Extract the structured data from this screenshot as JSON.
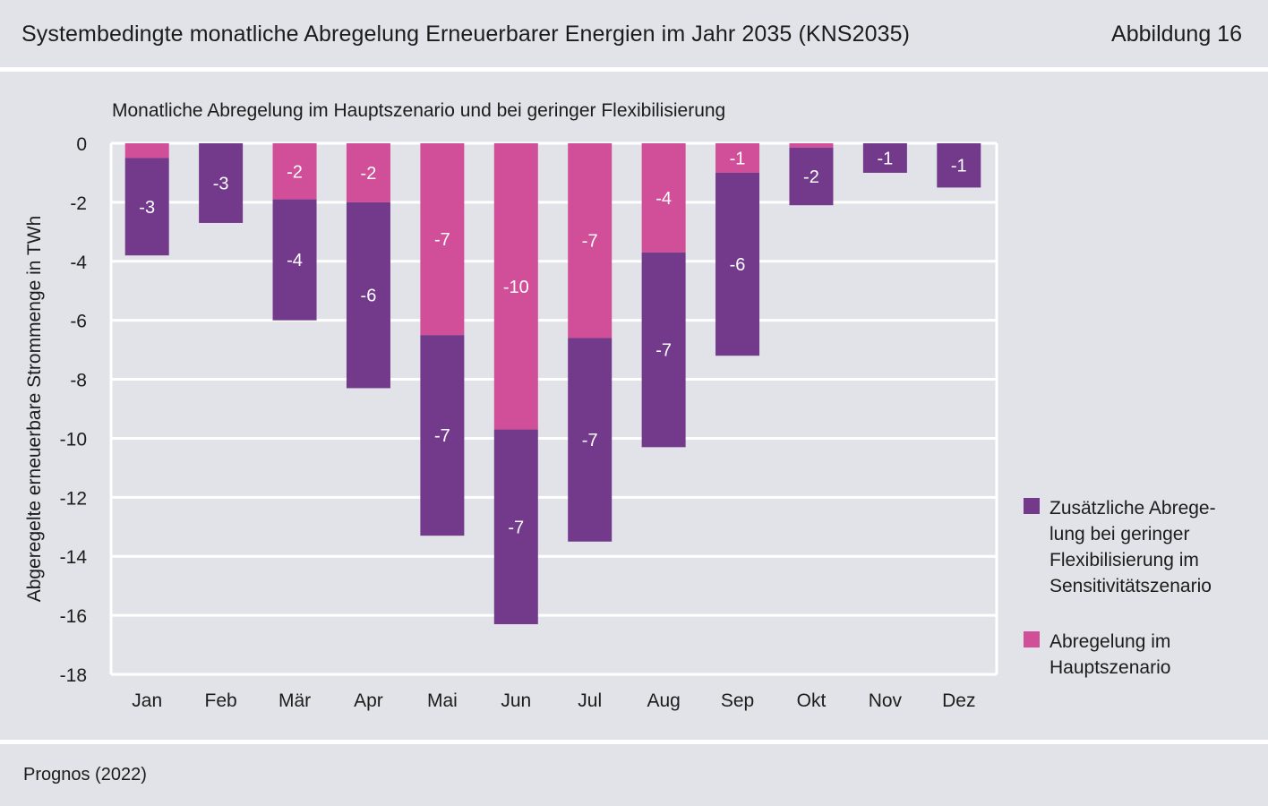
{
  "header": {
    "title": "Systembedingte monatliche Abregelung Erneuerbarer Energien im Jahr 2035 (KNS2035)",
    "figure_label": "Abbildung 16"
  },
  "source": "Prognos (2022)",
  "colors": {
    "background": "#e2e3e8",
    "grid": "#ffffff",
    "haupt": "#d14e98",
    "zusatz": "#733a8c",
    "label_text": "#ffffff"
  },
  "chart_data": {
    "type": "bar",
    "stacked": true,
    "title": "Monatliche Abregelung im Hauptszenario und bei geringer Flexibilisierung",
    "xlabel": "",
    "ylabel": "Abgeregelte erneuerbare Strommenge in TWh",
    "ylim": [
      -18,
      0
    ],
    "yticks": [
      0,
      -2,
      -4,
      -6,
      -8,
      -10,
      -12,
      -14,
      -16,
      -18
    ],
    "ytick_labels": [
      "0",
      "-2",
      "-4",
      "-6",
      "-8",
      "-10",
      "-12",
      "-14",
      "-16",
      "-18"
    ],
    "grid": true,
    "legend_position": "right",
    "categories": [
      "Jan",
      "Feb",
      "Mär",
      "Apr",
      "Mai",
      "Jun",
      "Jul",
      "Aug",
      "Sep",
      "Okt",
      "Nov",
      "Dez"
    ],
    "series": [
      {
        "name": "Abregelung im Hauptszenario",
        "color_key": "haupt",
        "values": [
          -0.5,
          0,
          -1.9,
          -2.0,
          -6.5,
          -9.7,
          -6.6,
          -3.7,
          -1.0,
          -0.15,
          0,
          0
        ],
        "labels": [
          "",
          "",
          "-2",
          "-2",
          "-7",
          "-10",
          "-7",
          "-4",
          "-1",
          "",
          "",
          ""
        ]
      },
      {
        "name": "Zusätzliche Abregelung bei geringer Flexibilisierung im Sensitivitätszenario",
        "color_key": "zusatz",
        "values": [
          -3.3,
          -2.7,
          -4.1,
          -6.3,
          -6.8,
          -6.6,
          -6.9,
          -6.6,
          -6.2,
          -1.95,
          -1.0,
          -1.5
        ],
        "labels": [
          "-3",
          "-3",
          "-4",
          "-6",
          "-7",
          "-7",
          "-7",
          "-7",
          "-6",
          "-2",
          "-1",
          "-1"
        ]
      }
    ],
    "legend": [
      {
        "lines": [
          "Zusätzliche Abrege-",
          "lung bei geringer",
          "Flexibilisierung im",
          "Sensitivitätszenario"
        ],
        "color_key": "zusatz"
      },
      {
        "lines": [
          "Abregelung im",
          "Hauptszenario"
        ],
        "color_key": "haupt"
      }
    ]
  }
}
